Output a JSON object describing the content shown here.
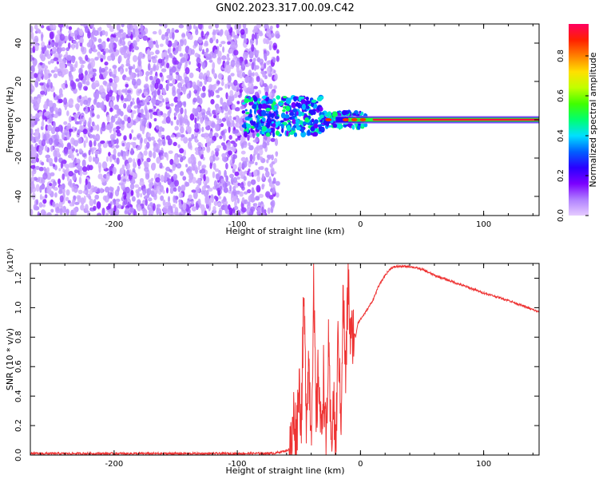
{
  "title": "GN02.2023.317.00.09.C42",
  "colorbar": {
    "label": "Normalized spectral amplitude",
    "ticks": [
      "0.0",
      "0.2",
      "0.4",
      "0.6",
      "0.8"
    ],
    "tick_values": [
      0.0,
      0.2,
      0.4,
      0.6,
      0.8
    ],
    "range": [
      0,
      0.96
    ],
    "colormap": [
      "#e6ccff",
      "#b080ff",
      "#7b00ff",
      "#2a00ff",
      "#0060ff",
      "#00e0ff",
      "#00ff70",
      "#40ff00",
      "#c0ff00",
      "#ffe000",
      "#ff8000",
      "#ff2000",
      "#ff0060"
    ]
  },
  "chart_data": [
    {
      "type": "heatmap",
      "title": "GN02.2023.317.00.09.C42",
      "xlabel": "Height of straight line (km)",
      "ylabel": "Frequency (Hz)",
      "xlim": [
        -268,
        145
      ],
      "ylim": [
        -50,
        50
      ],
      "xticks": [
        "-200",
        "-100",
        "0",
        "100"
      ],
      "xtick_values": [
        -200,
        -100,
        0,
        100
      ],
      "yticks": [
        "-40",
        "-20",
        "0",
        "20",
        "40"
      ],
      "ytick_values": [
        -40,
        -20,
        0,
        20,
        40
      ],
      "description_of_values": {
        "noise_region_x": [
          -268,
          -75
        ],
        "noise_amplitude_range": [
          0.02,
          0.15
        ],
        "transition_region_x": [
          -95,
          10
        ],
        "signal_band_center_hz": 0,
        "signal_peak_amplitude": 0.93
      },
      "colorbar_label": "Normalized spectral amplitude"
    },
    {
      "type": "line",
      "xlabel": "Height of straight line (km)",
      "ylabel": "SNR (10 * v/v)",
      "y_multiplier": "(x10⁴)",
      "xlim": [
        -268,
        145
      ],
      "ylim": [
        0,
        1.3
      ],
      "xticks": [
        "-200",
        "-100",
        "0",
        "100"
      ],
      "xtick_values": [
        -200,
        -100,
        0,
        100
      ],
      "yticks": [
        "0.0",
        "0.2",
        "0.4",
        "0.6",
        "0.8",
        "1.0",
        "1.2"
      ],
      "ytick_values": [
        0.0,
        0.2,
        0.4,
        0.6,
        0.8,
        1.0,
        1.2
      ],
      "series": [
        {
          "color": "#ee3333",
          "x": [
            -268,
            -200,
            -150,
            -100,
            -70,
            -60,
            -56,
            -54,
            -52,
            -50,
            -48,
            -46,
            -44,
            -42,
            -40,
            -38,
            -36,
            -34,
            -32,
            -30,
            -28,
            -26,
            -24,
            -22,
            -20,
            -18,
            -16,
            -14,
            -12,
            -10,
            -8,
            -6,
            -4,
            -2,
            0,
            5,
            10,
            15,
            20,
            25,
            30,
            40,
            50,
            60,
            80,
            100,
            120,
            145
          ],
          "y": [
            0.01,
            0.01,
            0.01,
            0.01,
            0.012,
            0.03,
            0.05,
            0.3,
            0.1,
            0.5,
            0.25,
            1.05,
            0.3,
            0.65,
            0.15,
            1.1,
            0.2,
            0.6,
            0.1,
            0.55,
            0.05,
            0.7,
            0.1,
            0.35,
            0.05,
            0.85,
            0.2,
            1.1,
            0.5,
            1.2,
            0.75,
            0.85,
            0.8,
            0.9,
            0.92,
            0.98,
            1.05,
            1.15,
            1.22,
            1.27,
            1.28,
            1.28,
            1.26,
            1.22,
            1.16,
            1.1,
            1.05,
            0.97
          ]
        }
      ]
    }
  ]
}
